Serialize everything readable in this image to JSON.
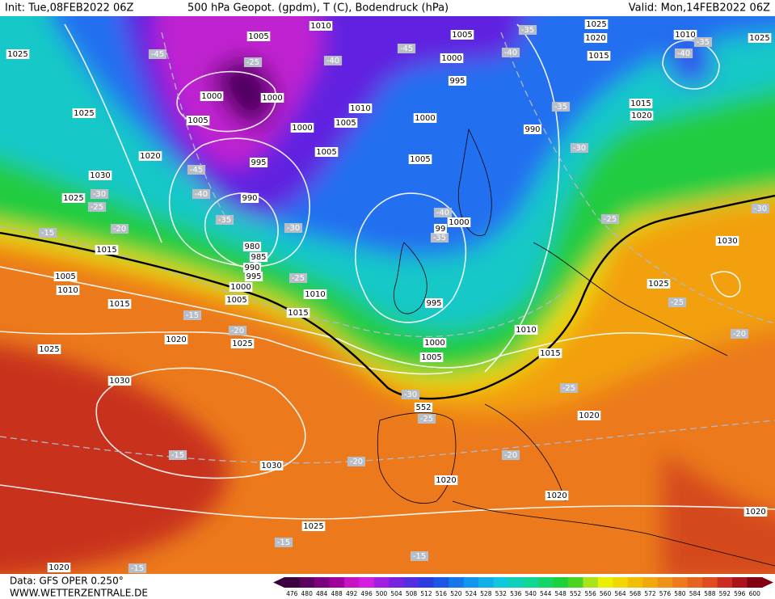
{
  "header": {
    "init": "Init: Tue,08FEB2022 06Z",
    "title": "500 hPa Geopot. (gpdm), T (C), Bodendruck (hPa)",
    "valid": "Valid: Mon,14FEB2022 06Z"
  },
  "footer": {
    "data_source": "Data: GFS OPER 0.250°",
    "website": "WWW.WETTERZENTRALE.DE"
  },
  "map": {
    "pressure_labels": [
      "1005",
      "1010",
      "1005",
      "1025",
      "1020",
      "1010",
      "1025",
      "1025",
      "1000",
      "1015",
      "1000",
      "1000",
      "995",
      "1010",
      "1025",
      "1005",
      "1000",
      "1005",
      "1000",
      "1015",
      "1020",
      "990",
      "1005",
      "1020",
      "995",
      "1005",
      "1030",
      "1025",
      "990",
      "1000",
      "1030",
      "1015",
      "980",
      "985",
      "990",
      "995",
      "1005",
      "1025",
      "1010",
      "1000",
      "1010",
      "1005",
      "1015",
      "1015",
      "995",
      "1010",
      "1020",
      "1025",
      "1000",
      "1025",
      "1015",
      "1005",
      "1030",
      "1020",
      "1030",
      "1020",
      "1020",
      "1020",
      "1025",
      "1020"
    ],
    "temperature_labels": [
      "-45",
      "-25",
      "-40",
      "-45",
      "-35",
      "-40",
      "-35",
      "-40",
      "-35",
      "-30",
      "-45",
      "-40",
      "-30",
      "-25",
      "-35",
      "-30",
      "-20",
      "-15",
      "-40",
      "-35",
      "-25",
      "-30",
      "-25",
      "-15",
      "-20",
      "-25",
      "-20",
      "-25",
      "-30",
      "-25",
      "-15",
      "-20",
      "-20",
      "-15",
      "-15",
      "-15"
    ],
    "geopotential_labels": [
      "99",
      "552"
    ]
  },
  "legend": {
    "scale": [
      "476",
      "480",
      "484",
      "488",
      "492",
      "496",
      "500",
      "504",
      "508",
      "512",
      "516",
      "520",
      "524",
      "528",
      "532",
      "536",
      "540",
      "544",
      "548",
      "552",
      "556",
      "560",
      "564",
      "568",
      "572",
      "576",
      "580",
      "584",
      "588",
      "592",
      "596",
      "600"
    ]
  }
}
